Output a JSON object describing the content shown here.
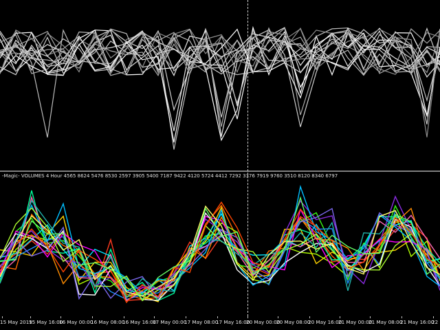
{
  "indicator": {
    "label": "-Magic- VOLUMES 4 Hour  4565 8624 5476 8530 2597 3905 5400 7187 9422 4120 5724 4412 7292 3376 7919 9760 3510 8120 8340 6797"
  },
  "time_axis": {
    "labels": [
      "15 May 2019",
      "15 May 16:00",
      "16 May 00:00",
      "16 May 08:00",
      "16 May 16:00",
      "17 May 00:00",
      "17 May 08:00",
      "17 May 16:00",
      "20 May 00:00",
      "20 May 08:00",
      "20 May 16:00",
      "21 May 00:00",
      "21 May 08:00",
      "21 May 16:00",
      "22 M"
    ]
  },
  "colors": {
    "background": "#000000",
    "grid_text": "#e8e8e8",
    "upper_lines": "#d8d8d8",
    "series_palette": [
      "#ff3b1f",
      "#ff6a00",
      "#ffd400",
      "#b0ff00",
      "#39ff14",
      "#00ff9c",
      "#00e5ff",
      "#1e90ff",
      "#8a2be2",
      "#ff00ff",
      "#ff69b4",
      "#ffffff",
      "#00bfff",
      "#ff8c00",
      "#adff2f",
      "#7b68ee",
      "#20b2aa",
      "#ff4500",
      "#ffff66",
      "#66ff66"
    ]
  }
}
